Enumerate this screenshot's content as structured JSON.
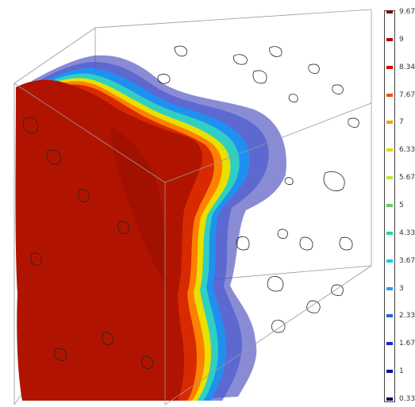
{
  "colorbar": {
    "ticks": [
      {
        "label": "9.67",
        "color": "#7a0000"
      },
      {
        "label": "9",
        "color": "#b40000"
      },
      {
        "label": "8.34",
        "color": "#e00000"
      },
      {
        "label": "7.67",
        "color": "#f05000"
      },
      {
        "label": "7",
        "color": "#ff9a00"
      },
      {
        "label": "6.33",
        "color": "#e8d800"
      },
      {
        "label": "5.67",
        "color": "#b8e83c"
      },
      {
        "label": "5",
        "color": "#66d060"
      },
      {
        "label": "4.33",
        "color": "#2cd0a8"
      },
      {
        "label": "3.67",
        "color": "#20c8e8"
      },
      {
        "label": "3",
        "color": "#2e9cf0"
      },
      {
        "label": "2.33",
        "color": "#2a60e0"
      },
      {
        "label": "1.67",
        "color": "#1a28d0"
      },
      {
        "label": "1",
        "color": "#0a0aa0"
      },
      {
        "label": "0.33",
        "color": "#000060"
      }
    ]
  },
  "colors": {
    "hot": "#b01400",
    "cool": "#4a50c0",
    "edge": "#888888",
    "contour": "#222222"
  }
}
